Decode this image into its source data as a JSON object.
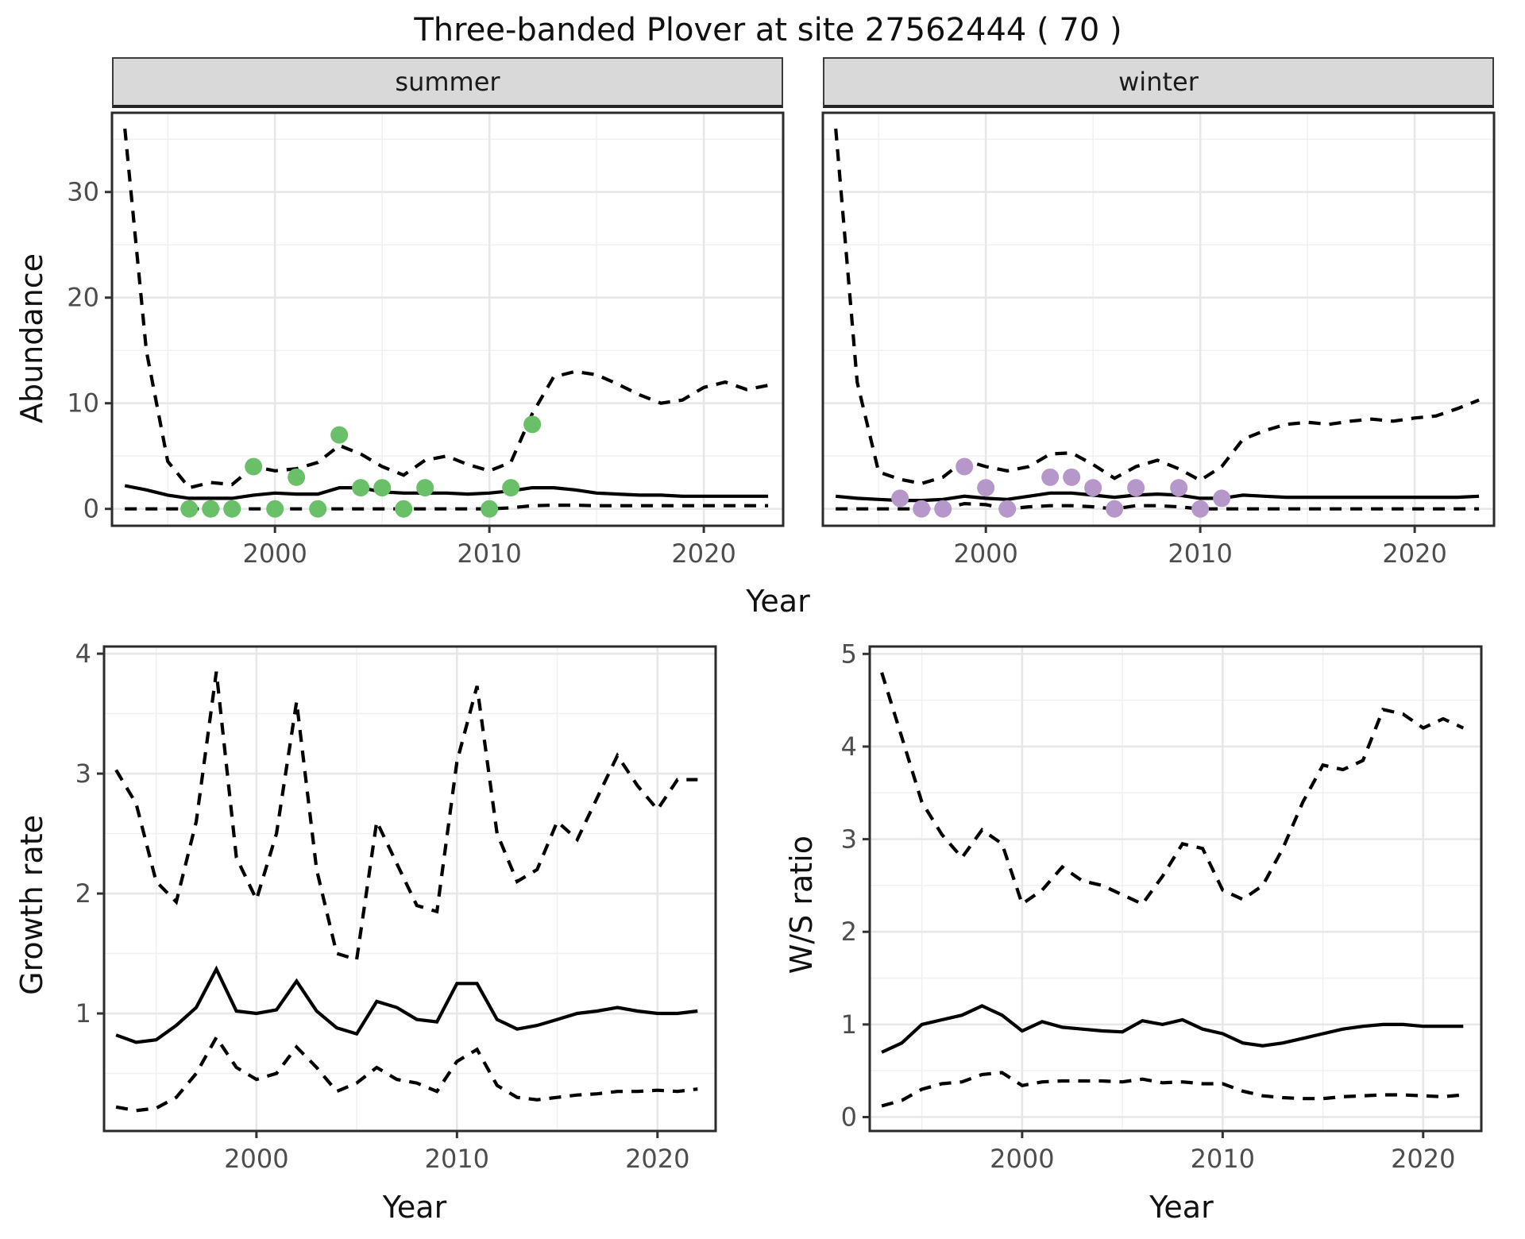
{
  "title": "Three-banded Plover at site 27562444 ( 70 )",
  "colors": {
    "summer_point": "#6abf69",
    "winter_point": "#b697ca",
    "line": "#000000",
    "strip_bg": "#d9d9d9",
    "panel_border": "#2b2b2b",
    "grid_major": "#e7e7e7",
    "grid_minor": "#f0f0f0",
    "axis_text": "#4d4d4d",
    "axis_title": "#111111",
    "background": "#ffffff"
  },
  "chart_data": [
    {
      "id": "abundance-summer",
      "type": "line",
      "facet": "summer",
      "x_label": "Year",
      "y_label": "Abundance",
      "x_ticks": [
        2000,
        2010,
        2020
      ],
      "y_ticks": [
        0,
        10,
        20,
        30
      ],
      "x_range": [
        1992.4,
        2023.7
      ],
      "y_range": [
        -1.6,
        37.5
      ],
      "grid": true,
      "legend": "none",
      "years": [
        1993,
        1994,
        1995,
        1996,
        1997,
        1998,
        1999,
        2000,
        2001,
        2002,
        2003,
        2004,
        2005,
        2006,
        2007,
        2008,
        2009,
        2010,
        2011,
        2012,
        2013,
        2014,
        2015,
        2016,
        2017,
        2018,
        2019,
        2020,
        2021,
        2022,
        2023
      ],
      "series": [
        {
          "name": "upper-ci",
          "dash": true,
          "values": [
            36,
            15,
            4.5,
            2.0,
            2.5,
            2.3,
            4.0,
            3.6,
            3.8,
            4.4,
            6.0,
            5.2,
            4.0,
            3.2,
            4.6,
            5.0,
            4.2,
            3.6,
            4.4,
            9.0,
            12.5,
            13.0,
            12.7,
            11.8,
            10.8,
            10.0,
            10.3,
            11.5,
            12.0,
            11.3,
            11.7
          ]
        },
        {
          "name": "lower-ci",
          "dash": true,
          "values": [
            0,
            0,
            0,
            0,
            0,
            0,
            0,
            0,
            0,
            0,
            0,
            0,
            0,
            0,
            0,
            0,
            0,
            0,
            0.1,
            0.3,
            0.35,
            0.35,
            0.3,
            0.3,
            0.3,
            0.3,
            0.3,
            0.3,
            0.3,
            0.3,
            0.3
          ]
        },
        {
          "name": "median",
          "dash": false,
          "values": [
            2.2,
            1.8,
            1.3,
            1.0,
            1.0,
            1.0,
            1.3,
            1.5,
            1.4,
            1.4,
            2.0,
            2.0,
            1.6,
            1.5,
            1.5,
            1.5,
            1.4,
            1.5,
            1.7,
            2.0,
            2.0,
            1.8,
            1.5,
            1.4,
            1.3,
            1.3,
            1.2,
            1.2,
            1.2,
            1.2,
            1.2
          ]
        }
      ],
      "observations": {
        "color_key": "summer_point",
        "years": [
          1996,
          1997,
          1998,
          1999,
          2000,
          2001,
          2002,
          2003,
          2004,
          2005,
          2006,
          2007,
          2010,
          2011,
          2012
        ],
        "values": [
          0,
          0,
          0,
          4,
          0,
          3,
          0,
          7,
          2,
          2,
          0,
          2,
          0,
          2,
          8
        ]
      }
    },
    {
      "id": "abundance-winter",
      "type": "line",
      "facet": "winter",
      "x_label": "Year",
      "y_label": "Abundance",
      "x_ticks": [
        2000,
        2010,
        2020
      ],
      "y_ticks": [
        0,
        10,
        20,
        30
      ],
      "x_range": [
        1992.4,
        2023.7
      ],
      "y_range": [
        -1.6,
        37.5
      ],
      "grid": true,
      "legend": "none",
      "years": [
        1993,
        1994,
        1995,
        1996,
        1997,
        1998,
        1999,
        2000,
        2001,
        2002,
        2003,
        2004,
        2005,
        2006,
        2007,
        2008,
        2009,
        2010,
        2011,
        2012,
        2013,
        2014,
        2015,
        2016,
        2017,
        2018,
        2019,
        2020,
        2021,
        2022,
        2023
      ],
      "series": [
        {
          "name": "upper-ci",
          "dash": true,
          "values": [
            36,
            12,
            3.5,
            2.8,
            2.4,
            3.0,
            4.6,
            4.0,
            3.6,
            4.0,
            5.2,
            5.3,
            4.2,
            2.9,
            4.0,
            4.6,
            3.8,
            2.7,
            4.0,
            6.6,
            7.4,
            8.0,
            8.2,
            8.0,
            8.3,
            8.5,
            8.3,
            8.6,
            8.8,
            9.5,
            10.3
          ]
        },
        {
          "name": "lower-ci",
          "dash": true,
          "values": [
            0,
            0,
            0,
            0,
            0,
            0,
            0.5,
            0.4,
            0,
            0.2,
            0.3,
            0.3,
            0.2,
            0,
            0.3,
            0.3,
            0.2,
            0,
            0,
            0,
            0,
            0,
            0,
            0,
            0,
            0,
            0,
            0,
            0,
            0,
            0
          ]
        },
        {
          "name": "median",
          "dash": false,
          "values": [
            1.2,
            1.0,
            0.9,
            0.8,
            0.8,
            0.9,
            1.2,
            1.0,
            0.9,
            1.2,
            1.5,
            1.5,
            1.3,
            1.1,
            1.3,
            1.4,
            1.3,
            1.0,
            1.0,
            1.3,
            1.2,
            1.1,
            1.1,
            1.1,
            1.1,
            1.1,
            1.1,
            1.1,
            1.1,
            1.1,
            1.2
          ]
        }
      ],
      "observations": {
        "color_key": "winter_point",
        "years": [
          1996,
          1997,
          1998,
          1999,
          2000,
          2001,
          2003,
          2004,
          2005,
          2006,
          2007,
          2009,
          2010,
          2011
        ],
        "values": [
          1,
          0,
          0,
          4,
          2,
          0,
          3,
          3,
          2,
          0,
          2,
          2,
          0,
          1
        ]
      }
    },
    {
      "id": "growth-rate",
      "type": "line",
      "x_label": "Year",
      "y_label": "Growth rate",
      "x_ticks": [
        2000,
        2010,
        2020
      ],
      "y_ticks": [
        1,
        2,
        3,
        4
      ],
      "x_range": [
        1992.4,
        2022.9
      ],
      "y_range": [
        0.02,
        4.06
      ],
      "grid": true,
      "legend": "none",
      "years": [
        1993,
        1994,
        1995,
        1996,
        1997,
        1998,
        1999,
        2000,
        2001,
        2002,
        2003,
        2004,
        2005,
        2006,
        2007,
        2008,
        2009,
        2010,
        2011,
        2012,
        2013,
        2014,
        2015,
        2016,
        2017,
        2018,
        2019,
        2020,
        2021,
        2022
      ],
      "series": [
        {
          "name": "upper-ci",
          "dash": true,
          "values": [
            3.03,
            2.75,
            2.1,
            1.93,
            2.6,
            3.85,
            2.3,
            1.95,
            2.5,
            3.6,
            2.2,
            1.5,
            1.45,
            2.6,
            2.25,
            1.9,
            1.85,
            3.1,
            3.73,
            2.5,
            2.1,
            2.2,
            2.6,
            2.45,
            2.8,
            3.15,
            2.9,
            2.7,
            2.95,
            2.95
          ]
        },
        {
          "name": "lower-ci",
          "dash": true,
          "values": [
            0.22,
            0.19,
            0.21,
            0.3,
            0.5,
            0.8,
            0.55,
            0.45,
            0.5,
            0.72,
            0.55,
            0.35,
            0.42,
            0.55,
            0.45,
            0.42,
            0.35,
            0.6,
            0.7,
            0.4,
            0.3,
            0.28,
            0.3,
            0.32,
            0.33,
            0.35,
            0.35,
            0.36,
            0.35,
            0.37
          ]
        },
        {
          "name": "median",
          "dash": false,
          "values": [
            0.82,
            0.76,
            0.78,
            0.9,
            1.05,
            1.37,
            1.02,
            1.0,
            1.03,
            1.27,
            1.02,
            0.88,
            0.83,
            1.1,
            1.05,
            0.95,
            0.93,
            1.25,
            1.25,
            0.95,
            0.87,
            0.9,
            0.95,
            1.0,
            1.02,
            1.05,
            1.02,
            1.0,
            1.0,
            1.02
          ]
        }
      ]
    },
    {
      "id": "ws-ratio",
      "type": "line",
      "x_label": "Year",
      "y_label": "W/S ratio",
      "x_ticks": [
        2000,
        2010,
        2020
      ],
      "y_ticks": [
        0,
        1,
        2,
        3,
        4,
        5
      ],
      "x_range": [
        1992.4,
        2022.9
      ],
      "y_range": [
        -0.15,
        5.08
      ],
      "grid": true,
      "legend": "none",
      "years": [
        1993,
        1994,
        1995,
        1996,
        1997,
        1998,
        1999,
        2000,
        2001,
        2002,
        2003,
        2004,
        2005,
        2006,
        2007,
        2008,
        2009,
        2010,
        2011,
        2012,
        2013,
        2014,
        2015,
        2016,
        2017,
        2018,
        2019,
        2020,
        2021,
        2022
      ],
      "series": [
        {
          "name": "upper-ci",
          "dash": true,
          "values": [
            4.8,
            4.1,
            3.4,
            3.05,
            2.8,
            3.1,
            2.95,
            2.3,
            2.45,
            2.7,
            2.55,
            2.5,
            2.4,
            2.3,
            2.6,
            2.95,
            2.9,
            2.45,
            2.35,
            2.5,
            2.9,
            3.4,
            3.8,
            3.75,
            3.85,
            4.4,
            4.35,
            4.2,
            4.3,
            4.2
          ]
        },
        {
          "name": "lower-ci",
          "dash": true,
          "values": [
            0.12,
            0.18,
            0.3,
            0.36,
            0.38,
            0.46,
            0.48,
            0.34,
            0.38,
            0.39,
            0.39,
            0.39,
            0.38,
            0.41,
            0.37,
            0.38,
            0.36,
            0.36,
            0.28,
            0.23,
            0.21,
            0.2,
            0.2,
            0.22,
            0.23,
            0.24,
            0.24,
            0.23,
            0.22,
            0.24
          ]
        },
        {
          "name": "median",
          "dash": false,
          "values": [
            0.7,
            0.8,
            1.0,
            1.05,
            1.1,
            1.2,
            1.1,
            0.93,
            1.03,
            0.97,
            0.95,
            0.93,
            0.92,
            1.04,
            1.0,
            1.05,
            0.95,
            0.9,
            0.8,
            0.77,
            0.8,
            0.85,
            0.9,
            0.95,
            0.98,
            1.0,
            1.0,
            0.98,
            0.98,
            0.98
          ]
        }
      ]
    }
  ]
}
